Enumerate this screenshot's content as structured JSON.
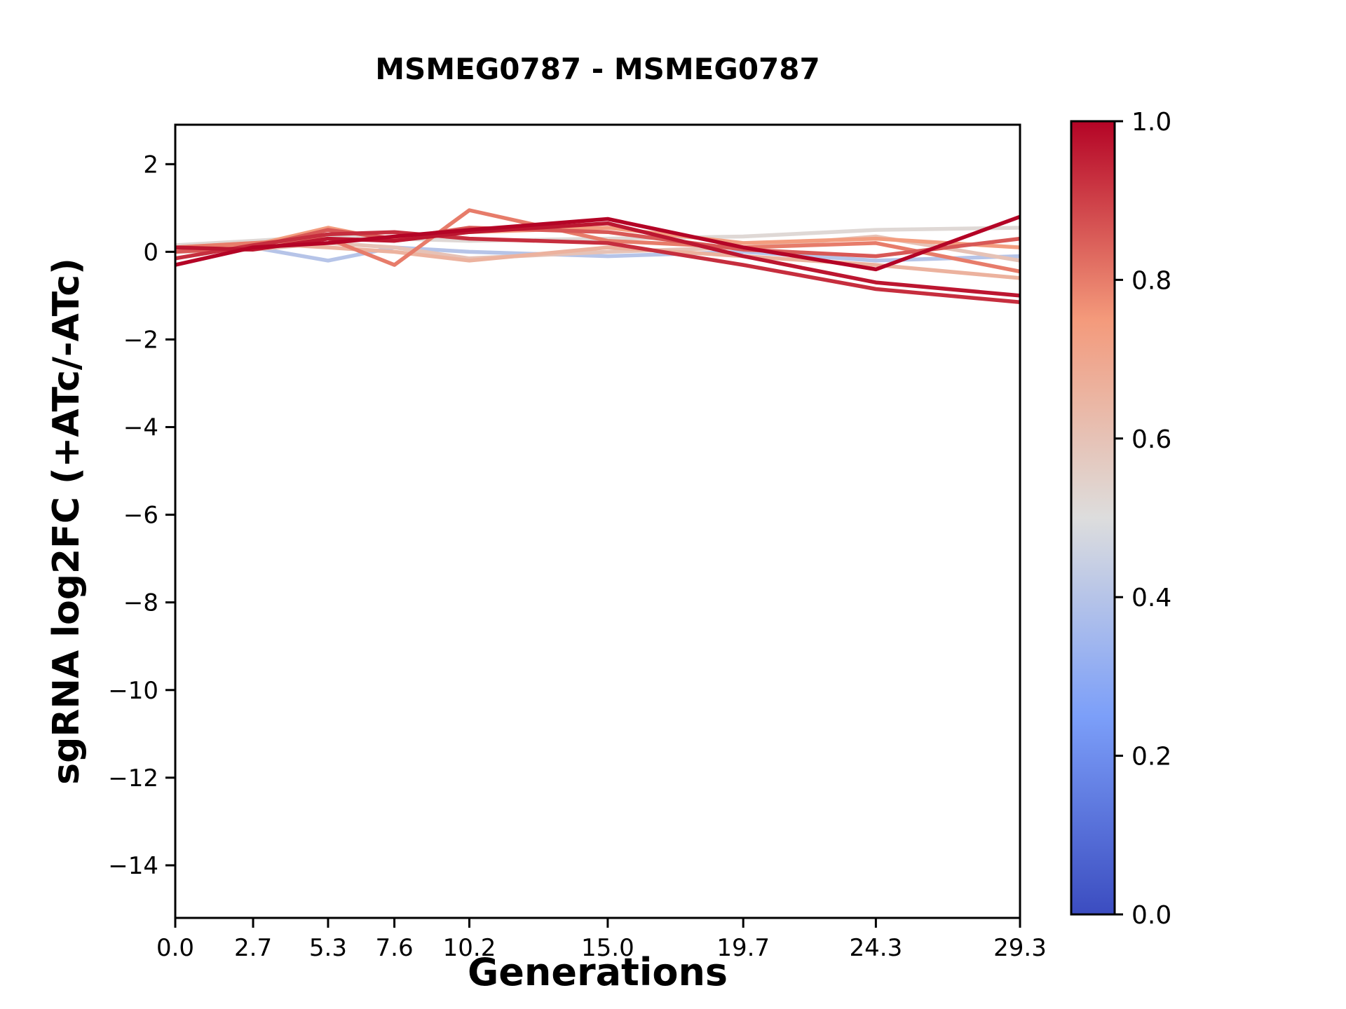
{
  "chart_data": {
    "type": "line",
    "title": "MSMEG0787 - MSMEG0787",
    "xlabel": "Generations",
    "ylabel": "sgRNA log2FC (+ATc/-ATc)",
    "x": [
      0.0,
      2.7,
      5.3,
      7.6,
      10.2,
      15.0,
      19.7,
      24.3,
      29.3
    ],
    "x_tick_labels": [
      "0.0",
      "2.7",
      "5.3",
      "7.6",
      "10.2",
      "15.0",
      "19.7",
      "24.3",
      "29.3"
    ],
    "y_ticks": [
      2,
      0,
      -2,
      -4,
      -6,
      -8,
      -10,
      -12,
      -14
    ],
    "xlim": [
      0.0,
      29.3
    ],
    "ylim": [
      -15.2,
      2.9
    ],
    "grid": false,
    "colormap": "coolwarm",
    "colorbar": {
      "min": 0.0,
      "max": 1.0,
      "tick_labels": [
        "0.0",
        "0.2",
        "0.4",
        "0.6",
        "0.8",
        "1.0"
      ]
    },
    "series": [
      {
        "color_value": 0.4,
        "values": [
          0.0,
          0.1,
          -0.2,
          0.1,
          0.0,
          -0.1,
          0.0,
          -0.2,
          -0.1
        ]
      },
      {
        "color_value": 0.52,
        "values": [
          0.15,
          0.25,
          0.35,
          0.3,
          0.25,
          0.3,
          0.35,
          0.5,
          0.55
        ]
      },
      {
        "color_value": 0.6,
        "values": [
          0.0,
          0.05,
          0.2,
          0.1,
          -0.15,
          0.0,
          0.1,
          0.35,
          -0.2
        ]
      },
      {
        "color_value": 0.66,
        "values": [
          0.1,
          0.2,
          0.1,
          0.0,
          -0.2,
          0.1,
          -0.1,
          -0.3,
          -0.6
        ]
      },
      {
        "color_value": 0.74,
        "values": [
          0.05,
          0.15,
          0.55,
          0.25,
          0.45,
          0.55,
          0.2,
          0.3,
          0.1
        ]
      },
      {
        "color_value": 0.8,
        "values": [
          0.1,
          0.2,
          0.3,
          -0.3,
          0.95,
          0.25,
          0.1,
          0.2,
          -0.45
        ]
      },
      {
        "color_value": 0.86,
        "values": [
          0.0,
          0.1,
          0.5,
          0.3,
          0.55,
          0.45,
          0.05,
          -0.1,
          0.3
        ]
      },
      {
        "color_value": 0.93,
        "values": [
          -0.15,
          0.15,
          0.4,
          0.45,
          0.3,
          0.2,
          -0.3,
          -0.85,
          -1.15
        ]
      },
      {
        "color_value": 0.97,
        "values": [
          0.1,
          0.05,
          0.3,
          0.25,
          0.45,
          0.65,
          -0.1,
          -0.7,
          -1.0
        ]
      },
      {
        "color_value": 1.0,
        "values": [
          -0.3,
          0.1,
          0.2,
          0.35,
          0.5,
          0.75,
          0.1,
          -0.4,
          0.8
        ]
      }
    ]
  }
}
